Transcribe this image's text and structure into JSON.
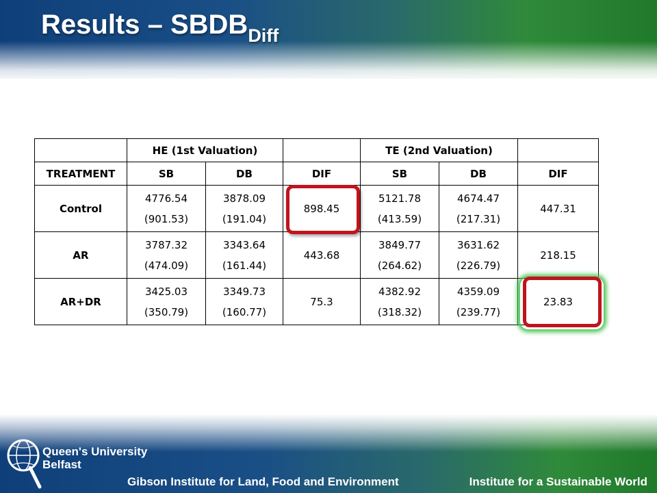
{
  "slide": {
    "title_main": "Results – SBDB",
    "title_sub": "Diff"
  },
  "table": {
    "group_header": {
      "he": "HE (1st Valuation)",
      "te": "TE (2nd Valuation)"
    },
    "columns": [
      "TREATMENT",
      "SB",
      "DB",
      "DIF",
      "SB",
      "DB",
      "DIF"
    ],
    "rows": [
      {
        "label": "Control",
        "he_sb": "4776.54",
        "he_sb_sd": "(901.53)",
        "he_db": "3878.09",
        "he_db_sd": "(191.04)",
        "he_dif": "898.45",
        "te_sb": "5121.78",
        "te_sb_sd": "(413.59)",
        "te_db": "4674.47",
        "te_db_sd": "(217.31)",
        "te_dif": "447.31"
      },
      {
        "label": "AR",
        "he_sb": "3787.32",
        "he_sb_sd": "(474.09)",
        "he_db": "3343.64",
        "he_db_sd": "(161.44)",
        "he_dif": "443.68",
        "te_sb": "3849.77",
        "te_sb_sd": "(264.62)",
        "te_db": "3631.62",
        "te_db_sd": "(226.79)",
        "te_dif": "218.15"
      },
      {
        "label": "AR+DR",
        "he_sb": "3425.03",
        "he_sb_sd": "(350.79)",
        "he_db": "3349.73",
        "he_db_sd": "(160.77)",
        "he_dif": "75.3",
        "te_sb": "4382.92",
        "te_sb_sd": "(318.32)",
        "te_db": "4359.09",
        "te_db_sd": "(239.77)",
        "te_dif": "23.83"
      }
    ]
  },
  "highlights": {
    "red_color": "#c0141c",
    "green_color": "#46c24e"
  },
  "footer": {
    "logo_line1": "Queen's University",
    "logo_line2": "Belfast",
    "left": "Gibson Institute for Land, Food and Environment",
    "right": "Institute for a Sustainable World"
  },
  "brand": {
    "blue": "#0f3f7a",
    "green": "#2f8a3a"
  }
}
